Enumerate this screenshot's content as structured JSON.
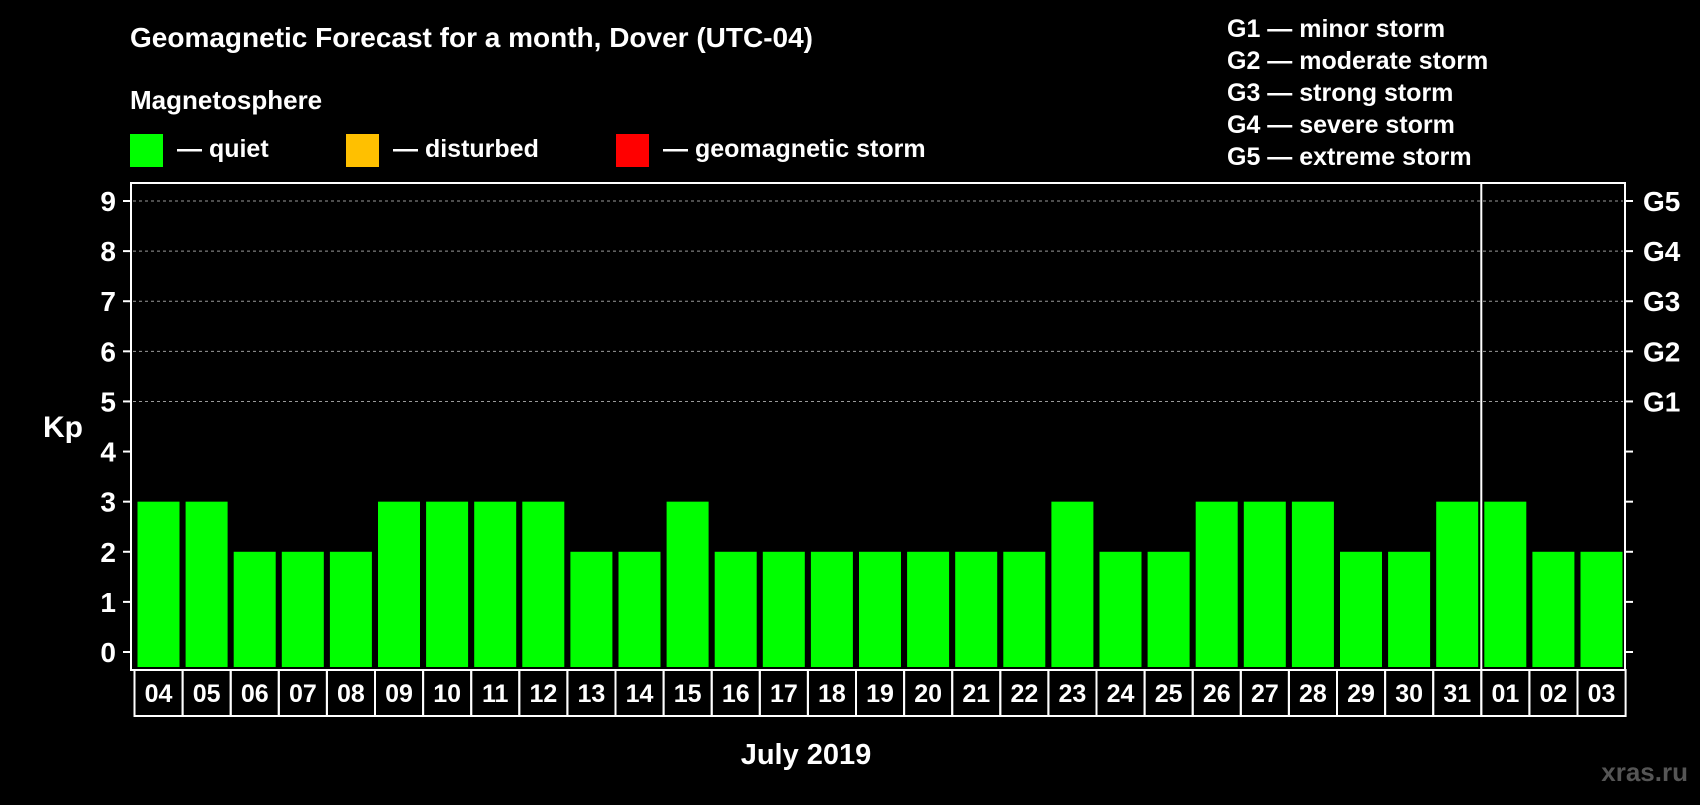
{
  "chart_data": {
    "type": "bar",
    "title": "Geomagnetic Forecast for a month, Dover (UTC-04)",
    "legend_heading": "Magnetosphere",
    "legend": [
      {
        "label": "— quiet",
        "color": "#00ff00"
      },
      {
        "label": "— disturbed",
        "color": "#ffc000"
      },
      {
        "label": "— geomagnetic storm",
        "color": "#ff0000"
      }
    ],
    "storm_scale": [
      "G1 — minor storm",
      "G2 — moderate storm",
      "G3 — strong storm",
      "G4 — severe storm",
      "G5 — extreme storm"
    ],
    "ylabel": "Kp",
    "xlabel": "July 2019",
    "ylim": [
      0,
      9
    ],
    "yticks": [
      "0",
      "1",
      "2",
      "3",
      "4",
      "5",
      "6",
      "7",
      "8",
      "9"
    ],
    "right_ticks": [
      {
        "value": 5,
        "label": "G1"
      },
      {
        "value": 6,
        "label": "G2"
      },
      {
        "value": 7,
        "label": "G3"
      },
      {
        "value": 8,
        "label": "G4"
      },
      {
        "value": 9,
        "label": "G5"
      }
    ],
    "grid": "dashed horizontal at Kp 5–9",
    "month_divider_after": "31",
    "categories": [
      "04",
      "05",
      "06",
      "07",
      "08",
      "09",
      "10",
      "11",
      "12",
      "13",
      "14",
      "15",
      "16",
      "17",
      "18",
      "19",
      "20",
      "21",
      "22",
      "23",
      "24",
      "25",
      "26",
      "27",
      "28",
      "29",
      "30",
      "31",
      "01",
      "02",
      "03"
    ],
    "values": [
      3,
      3,
      2,
      2,
      2,
      3,
      3,
      3,
      3,
      2,
      2,
      3,
      2,
      2,
      2,
      2,
      2,
      2,
      2,
      3,
      2,
      2,
      3,
      3,
      3,
      2,
      2,
      3,
      3,
      2,
      2
    ],
    "bar_color": "#00ff00",
    "watermark": "xras.ru"
  }
}
